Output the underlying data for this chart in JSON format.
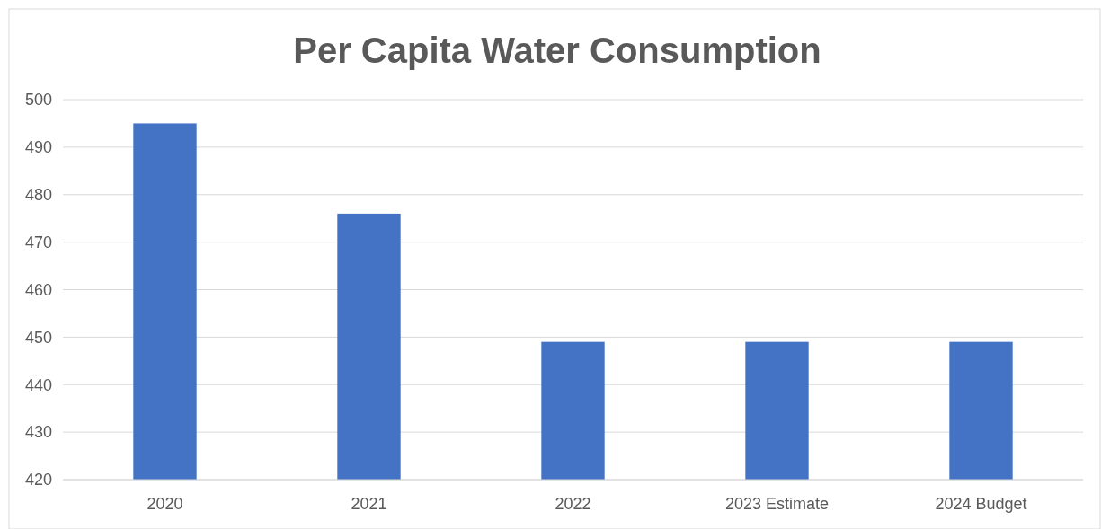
{
  "chart_data": {
    "type": "bar",
    "title": "Per Capita Water Consumption",
    "categories": [
      "2020",
      "2021",
      "2022",
      "2023 Estimate",
      "2024 Budget"
    ],
    "values": [
      495,
      476,
      449,
      449,
      449
    ],
    "color": "#4472c4",
    "ylim": [
      420,
      500
    ],
    "yticks": [
      420,
      430,
      440,
      450,
      460,
      470,
      480,
      490,
      500
    ],
    "grid": "y"
  }
}
